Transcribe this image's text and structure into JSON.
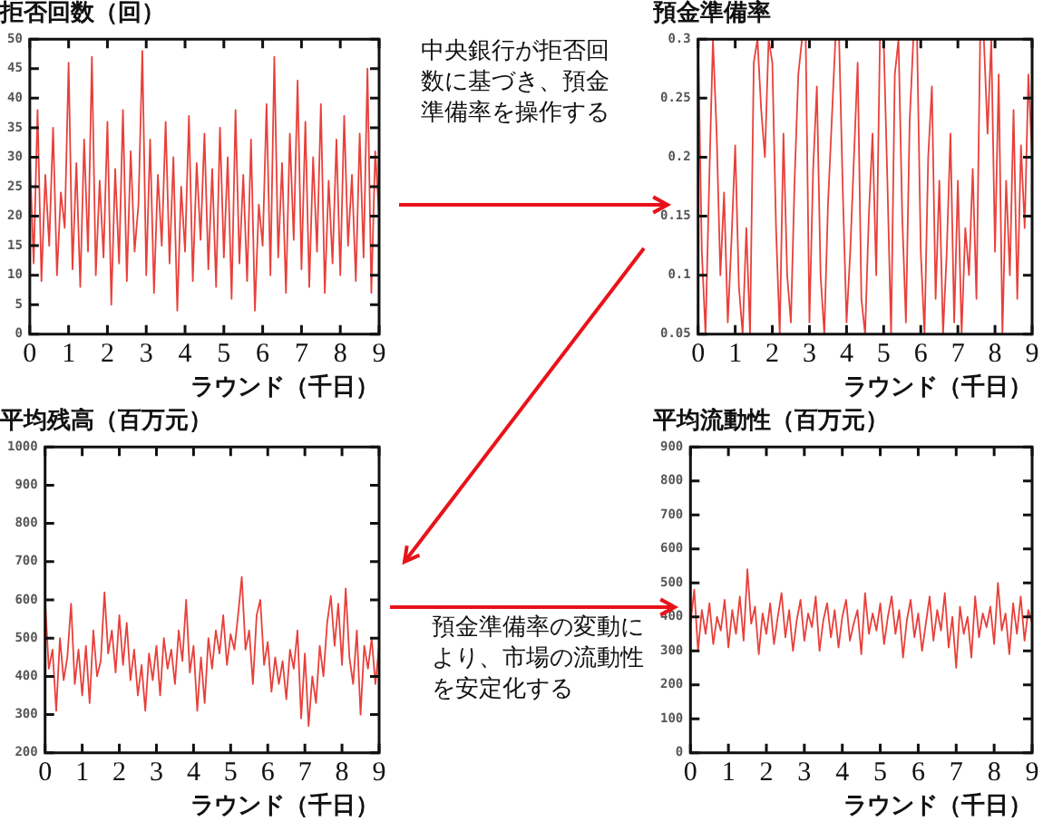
{
  "chart_data": [
    {
      "type": "line",
      "title": "拒否回数（回）",
      "xlabel": "ラウンド（千日）",
      "marker": "none",
      "xlim": [
        0,
        9
      ],
      "xticks": [
        0,
        1,
        2,
        3,
        4,
        5,
        6,
        7,
        8,
        9
      ],
      "ylim": [
        0,
        50
      ],
      "yticks": [
        0,
        5,
        10,
        15,
        20,
        25,
        30,
        35,
        40,
        45,
        50
      ],
      "x": [
        0,
        0.1,
        0.2,
        0.3,
        0.4,
        0.5,
        0.6,
        0.7,
        0.8,
        0.9,
        1,
        1.1,
        1.2,
        1.3,
        1.4,
        1.5,
        1.6,
        1.7,
        1.8,
        1.9,
        2,
        2.1,
        2.2,
        2.3,
        2.4,
        2.5,
        2.6,
        2.7,
        2.8,
        2.9,
        3,
        3.1,
        3.2,
        3.3,
        3.4,
        3.5,
        3.6,
        3.7,
        3.8,
        3.9,
        4,
        4.1,
        4.2,
        4.3,
        4.4,
        4.5,
        4.6,
        4.7,
        4.8,
        4.9,
        5,
        5.1,
        5.2,
        5.3,
        5.4,
        5.5,
        5.6,
        5.7,
        5.8,
        5.9,
        6,
        6.1,
        6.2,
        6.3,
        6.4,
        6.5,
        6.6,
        6.7,
        6.8,
        6.9,
        7,
        7.1,
        7.2,
        7.3,
        7.4,
        7.5,
        7.6,
        7.7,
        7.8,
        7.9,
        8,
        8.1,
        8.2,
        8.3,
        8.4,
        8.5,
        8.6,
        8.7,
        8.8,
        8.9,
        9
      ],
      "series": [
        {
          "color": "#e8403a",
          "values": [
            30,
            12,
            38,
            9,
            27,
            15,
            35,
            10,
            24,
            18,
            46,
            11,
            29,
            8,
            33,
            14,
            47,
            10,
            26,
            13,
            36,
            5,
            28,
            12,
            38,
            9,
            31,
            14,
            22,
            48,
            10,
            33,
            7,
            27,
            15,
            36,
            12,
            30,
            4,
            25,
            14,
            37,
            9,
            29,
            16,
            34,
            11,
            28,
            8,
            35,
            13,
            30,
            6,
            38,
            12,
            27,
            9,
            33,
            4,
            22,
            15,
            39,
            10,
            47,
            13,
            29,
            7,
            34,
            16,
            43,
            11,
            36,
            8,
            30,
            14,
            39,
            7,
            26,
            12,
            33,
            10,
            37,
            15,
            27,
            9,
            34,
            13,
            45,
            7,
            31,
            20
          ]
        }
      ],
      "annotations": [
        "中央銀行が拒否回数に基づき、預金準備率を操作する"
      ]
    },
    {
      "type": "line",
      "title": "預金準備率",
      "xlabel": "ラウンド（千日）",
      "marker": "none",
      "xlim": [
        0,
        9
      ],
      "xticks": [
        0,
        1,
        2,
        3,
        4,
        5,
        6,
        7,
        8,
        9
      ],
      "ylim": [
        0.05,
        0.3
      ],
      "yticks": [
        0.05,
        0.1,
        0.15,
        0.2,
        0.25,
        0.3
      ],
      "x": [
        0,
        0.1,
        0.2,
        0.3,
        0.4,
        0.5,
        0.6,
        0.7,
        0.8,
        0.9,
        1,
        1.1,
        1.2,
        1.3,
        1.4,
        1.5,
        1.6,
        1.7,
        1.8,
        1.9,
        2,
        2.1,
        2.2,
        2.3,
        2.4,
        2.5,
        2.6,
        2.7,
        2.8,
        2.9,
        3,
        3.1,
        3.2,
        3.3,
        3.4,
        3.5,
        3.6,
        3.7,
        3.8,
        3.9,
        4,
        4.1,
        4.2,
        4.3,
        4.4,
        4.5,
        4.6,
        4.7,
        4.8,
        4.9,
        5,
        5.1,
        5.2,
        5.3,
        5.4,
        5.5,
        5.6,
        5.7,
        5.8,
        5.9,
        6,
        6.1,
        6.2,
        6.3,
        6.4,
        6.5,
        6.6,
        6.7,
        6.8,
        6.9,
        7,
        7.1,
        7.2,
        7.3,
        7.4,
        7.5,
        7.6,
        7.7,
        7.8,
        7.9,
        8,
        8.1,
        8.2,
        8.3,
        8.4,
        8.5,
        8.6,
        8.7,
        8.8,
        8.9,
        9
      ],
      "series": [
        {
          "color": "#e8403a",
          "values": [
            0.3,
            0.12,
            0.05,
            0.18,
            0.3,
            0.22,
            0.1,
            0.17,
            0.06,
            0.13,
            0.21,
            0.09,
            0.05,
            0.14,
            0.05,
            0.28,
            0.3,
            0.24,
            0.2,
            0.3,
            0.28,
            0.14,
            0.05,
            0.22,
            0.1,
            0.06,
            0.18,
            0.27,
            0.3,
            0.3,
            0.06,
            0.19,
            0.26,
            0.1,
            0.05,
            0.16,
            0.23,
            0.3,
            0.3,
            0.17,
            0.06,
            0.12,
            0.2,
            0.28,
            0.08,
            0.05,
            0.15,
            0.22,
            0.1,
            0.3,
            0.3,
            0.18,
            0.05,
            0.27,
            0.3,
            0.15,
            0.06,
            0.23,
            0.3,
            0.3,
            0.12,
            0.05,
            0.2,
            0.26,
            0.08,
            0.18,
            0.05,
            0.12,
            0.22,
            0.06,
            0.18,
            0.05,
            0.14,
            0.1,
            0.19,
            0.08,
            0.3,
            0.3,
            0.22,
            0.3,
            0.12,
            0.27,
            0.05,
            0.18,
            0.1,
            0.24,
            0.08,
            0.21,
            0.14,
            0.27,
            0.2
          ]
        }
      ]
    },
    {
      "type": "line",
      "title": "平均残高（百万元）",
      "xlabel": "ラウンド（千日）",
      "marker": "none",
      "xlim": [
        0,
        9
      ],
      "xticks": [
        0,
        1,
        2,
        3,
        4,
        5,
        6,
        7,
        8,
        9
      ],
      "ylim": [
        200,
        1000
      ],
      "yticks": [
        200,
        300,
        400,
        500,
        600,
        700,
        800,
        900,
        1000
      ],
      "x": [
        0,
        0.1,
        0.2,
        0.3,
        0.4,
        0.5,
        0.6,
        0.7,
        0.8,
        0.9,
        1,
        1.1,
        1.2,
        1.3,
        1.4,
        1.5,
        1.6,
        1.7,
        1.8,
        1.9,
        2,
        2.1,
        2.2,
        2.3,
        2.4,
        2.5,
        2.6,
        2.7,
        2.8,
        2.9,
        3,
        3.1,
        3.2,
        3.3,
        3.4,
        3.5,
        3.6,
        3.7,
        3.8,
        3.9,
        4,
        4.1,
        4.2,
        4.3,
        4.4,
        4.5,
        4.6,
        4.7,
        4.8,
        4.9,
        5,
        5.1,
        5.2,
        5.3,
        5.4,
        5.5,
        5.6,
        5.7,
        5.8,
        5.9,
        6,
        6.1,
        6.2,
        6.3,
        6.4,
        6.5,
        6.6,
        6.7,
        6.8,
        6.9,
        7,
        7.1,
        7.2,
        7.3,
        7.4,
        7.5,
        7.6,
        7.7,
        7.8,
        7.9,
        8,
        8.1,
        8.2,
        8.3,
        8.4,
        8.5,
        8.6,
        8.7,
        8.8,
        8.9,
        9
      ],
      "series": [
        {
          "color": "#e8403a",
          "values": [
            600,
            420,
            470,
            310,
            500,
            390,
            450,
            590,
            380,
            470,
            350,
            480,
            330,
            520,
            400,
            440,
            620,
            460,
            520,
            410,
            560,
            430,
            540,
            390,
            470,
            350,
            430,
            310,
            460,
            390,
            480,
            350,
            500,
            420,
            470,
            380,
            520,
            440,
            600,
            410,
            480,
            310,
            450,
            330,
            500,
            420,
            520,
            460,
            560,
            430,
            510,
            470,
            560,
            660,
            470,
            520,
            380,
            560,
            600,
            430,
            490,
            360,
            450,
            380,
            440,
            340,
            470,
            420,
            520,
            290,
            460,
            270,
            400,
            330,
            480,
            400,
            540,
            610,
            480,
            590,
            430,
            630,
            450,
            380,
            520,
            300,
            480,
            420,
            500,
            380,
            480
          ]
        }
      ],
      "annotations": [
        "預金準備率の変動により、市場の流動性を安定化する"
      ]
    },
    {
      "type": "line",
      "title": "平均流動性（百万元）",
      "xlabel": "ラウンド（千日）",
      "marker": "none",
      "xlim": [
        0,
        9
      ],
      "xticks": [
        0,
        1,
        2,
        3,
        4,
        5,
        6,
        7,
        8,
        9
      ],
      "ylim": [
        0,
        900
      ],
      "yticks": [
        0,
        100,
        200,
        300,
        400,
        500,
        600,
        700,
        800,
        900
      ],
      "x": [
        0,
        0.1,
        0.2,
        0.3,
        0.4,
        0.5,
        0.6,
        0.7,
        0.8,
        0.9,
        1,
        1.1,
        1.2,
        1.3,
        1.4,
        1.5,
        1.6,
        1.7,
        1.8,
        1.9,
        2,
        2.1,
        2.2,
        2.3,
        2.4,
        2.5,
        2.6,
        2.7,
        2.8,
        2.9,
        3,
        3.1,
        3.2,
        3.3,
        3.4,
        3.5,
        3.6,
        3.7,
        3.8,
        3.9,
        4,
        4.1,
        4.2,
        4.3,
        4.4,
        4.5,
        4.6,
        4.7,
        4.8,
        4.9,
        5,
        5.1,
        5.2,
        5.3,
        5.4,
        5.5,
        5.6,
        5.7,
        5.8,
        5.9,
        6,
        6.1,
        6.2,
        6.3,
        6.4,
        6.5,
        6.6,
        6.7,
        6.8,
        6.9,
        7,
        7.1,
        7.2,
        7.3,
        7.4,
        7.5,
        7.6,
        7.7,
        7.8,
        7.9,
        8,
        8.1,
        8.2,
        8.3,
        8.4,
        8.5,
        8.6,
        8.7,
        8.8,
        8.9,
        9
      ],
      "series": [
        {
          "color": "#e8403a",
          "values": [
            380,
            480,
            300,
            420,
            350,
            440,
            320,
            400,
            360,
            450,
            310,
            420,
            350,
            460,
            330,
            540,
            380,
            430,
            290,
            410,
            350,
            440,
            320,
            400,
            470,
            340,
            420,
            300,
            390,
            450,
            330,
            410,
            370,
            460,
            300,
            390,
            440,
            340,
            420,
            310,
            400,
            450,
            330,
            380,
            420,
            290,
            470,
            350,
            410,
            360,
            440,
            320,
            400,
            460,
            350,
            420,
            280,
            390,
            450,
            340,
            410,
            300,
            380,
            460,
            330,
            420,
            360,
            470,
            310,
            400,
            250,
            430,
            350,
            400,
            280,
            460,
            340,
            410,
            370,
            430,
            320,
            500,
            360,
            410,
            290,
            440,
            350,
            460,
            330,
            420,
            380
          ]
        }
      ]
    }
  ]
}
